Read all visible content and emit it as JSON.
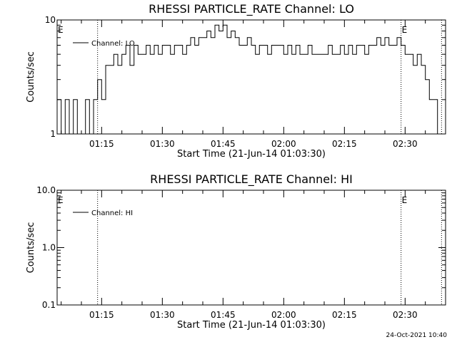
{
  "footer_timestamp": "24-Oct-2021 10:40",
  "chart_data": [
    {
      "type": "line",
      "title": "RHESSI PARTICLE_RATE Channel: LO",
      "xlabel": "Start Time (21-Jun-14 01:03:30)",
      "ylabel": "Counts/sec",
      "yscale": "log",
      "ylim": [
        1,
        10
      ],
      "ytick_values": [
        1,
        10
      ],
      "ytick_labels": [
        "1",
        "10"
      ],
      "xlim": [
        "01:04",
        "02:40"
      ],
      "xtick_values": [
        "01:15",
        "01:30",
        "01:45",
        "02:00",
        "02:15",
        "02:30"
      ],
      "xtick_labels": [
        "01:15",
        "01:30",
        "01:45",
        "02:00",
        "02:15",
        "02:30"
      ],
      "legend_placement": "top-left",
      "event_marker": "E",
      "event_marker_times": [
        "01:04",
        "02:29"
      ],
      "dotted_lines": [
        "01:14",
        "02:29",
        "02:39"
      ],
      "series": [
        {
          "name": "Channel: LO",
          "x": [
            "01:04",
            "01:05",
            "01:06",
            "01:07",
            "01:08",
            "01:09",
            "01:10",
            "01:11",
            "01:12",
            "01:13",
            "01:14",
            "01:15",
            "01:16",
            "01:17",
            "01:18",
            "01:19",
            "01:20",
            "01:21",
            "01:22",
            "01:23",
            "01:24",
            "01:25",
            "01:26",
            "01:27",
            "01:28",
            "01:29",
            "01:30",
            "01:31",
            "01:32",
            "01:33",
            "01:34",
            "01:35",
            "01:36",
            "01:37",
            "01:38",
            "01:39",
            "01:40",
            "01:41",
            "01:42",
            "01:43",
            "01:44",
            "01:45",
            "01:46",
            "01:47",
            "01:48",
            "01:49",
            "01:50",
            "01:51",
            "01:52",
            "01:53",
            "01:54",
            "01:55",
            "01:56",
            "01:57",
            "01:58",
            "01:59",
            "02:00",
            "02:01",
            "02:02",
            "02:03",
            "02:04",
            "02:05",
            "02:06",
            "02:07",
            "02:08",
            "02:09",
            "02:10",
            "02:11",
            "02:12",
            "02:13",
            "02:14",
            "02:15",
            "02:16",
            "02:17",
            "02:18",
            "02:19",
            "02:20",
            "02:21",
            "02:22",
            "02:23",
            "02:24",
            "02:25",
            "02:26",
            "02:27",
            "02:28",
            "02:29",
            "02:30",
            "02:31",
            "02:32",
            "02:33",
            "02:34",
            "02:35",
            "02:36",
            "02:37",
            "02:38",
            "02:39"
          ],
          "y": [
            2,
            1,
            2,
            1,
            2,
            1,
            1,
            2,
            1,
            2,
            3,
            2,
            4,
            4,
            5,
            4,
            5,
            6,
            4,
            6,
            5,
            5,
            6,
            5,
            6,
            5,
            6,
            6,
            5,
            6,
            6,
            5,
            6,
            7,
            6,
            7,
            7,
            8,
            7,
            9,
            8,
            9,
            7,
            8,
            7,
            6,
            6,
            7,
            6,
            5,
            6,
            6,
            5,
            6,
            6,
            6,
            5,
            6,
            5,
            6,
            5,
            5,
            6,
            5,
            5,
            5,
            5,
            6,
            5,
            5,
            6,
            5,
            6,
            5,
            6,
            6,
            5,
            6,
            6,
            7,
            6,
            7,
            6,
            6,
            7,
            6,
            5,
            5,
            4,
            5,
            4,
            3,
            2,
            2,
            1,
            1
          ]
        }
      ]
    },
    {
      "type": "line",
      "title": "RHESSI PARTICLE_RATE Channel: HI",
      "xlabel": "Start Time (21-Jun-14 01:03:30)",
      "ylabel": "Counts/sec",
      "yscale": "log",
      "ylim": [
        0.1,
        10
      ],
      "ytick_values": [
        0.1,
        1,
        10
      ],
      "ytick_labels": [
        "0.1",
        "1.0",
        "10.0"
      ],
      "xlim": [
        "01:04",
        "02:40"
      ],
      "xtick_values": [
        "01:15",
        "01:30",
        "01:45",
        "02:00",
        "02:15",
        "02:30"
      ],
      "xtick_labels": [
        "01:15",
        "01:30",
        "01:45",
        "02:00",
        "02:15",
        "02:30"
      ],
      "legend_placement": "top-left",
      "event_marker": "E",
      "event_marker_times": [
        "01:04",
        "02:29"
      ],
      "dotted_lines": [
        "01:14",
        "02:29",
        "02:39"
      ],
      "series": [
        {
          "name": "Channel: HI",
          "x": [],
          "y": []
        }
      ]
    }
  ]
}
